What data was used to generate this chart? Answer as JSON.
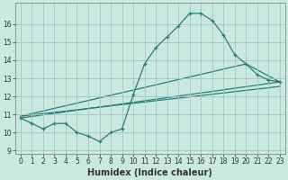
{
  "title": "",
  "xlabel": "Humidex (Indice chaleur)",
  "ylabel": "",
  "bg_color": "#c8e8e0",
  "line_color": "#2e7d73",
  "grid_color": "#a0c8c0",
  "xlim": [
    -0.5,
    23.5
  ],
  "ylim": [
    8.8,
    17.2
  ],
  "yticks": [
    9,
    10,
    11,
    12,
    13,
    14,
    15,
    16
  ],
  "xticks": [
    0,
    1,
    2,
    3,
    4,
    5,
    6,
    7,
    8,
    9,
    10,
    11,
    12,
    13,
    14,
    15,
    16,
    17,
    18,
    19,
    20,
    21,
    22,
    23
  ],
  "series1_x": [
    0,
    1,
    2,
    3,
    4,
    5,
    6,
    7,
    8,
    9,
    10,
    11,
    12,
    13,
    14,
    15,
    16,
    17,
    18,
    19,
    20,
    21,
    22,
    23
  ],
  "series1_y": [
    10.8,
    10.5,
    10.2,
    10.5,
    10.5,
    10.0,
    9.8,
    9.5,
    10.0,
    10.2,
    12.1,
    13.8,
    14.7,
    15.3,
    15.9,
    16.6,
    16.6,
    16.2,
    15.4,
    14.3,
    13.8,
    13.2,
    12.9,
    12.8
  ],
  "series2_x": [
    0,
    23
  ],
  "series2_y": [
    10.8,
    12.8
  ],
  "series3_x": [
    0,
    23
  ],
  "series3_y": [
    10.9,
    12.55
  ],
  "series4_x": [
    0,
    20,
    23
  ],
  "series4_y": [
    10.9,
    13.8,
    12.8
  ],
  "xlabel_fontsize": 7,
  "tick_fontsize": 5.5
}
